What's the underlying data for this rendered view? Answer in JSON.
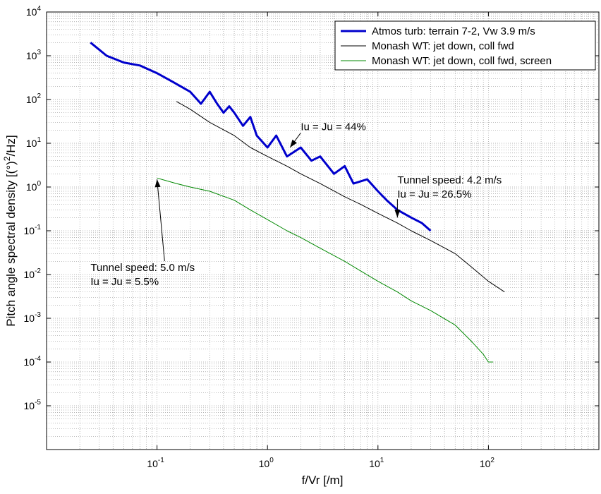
{
  "chart_data": {
    "type": "line",
    "xlabel": "f/Vr [/m]",
    "ylabel_prefix": "Pitch angle spectral density [(",
    "ylabel_degree": "°",
    "ylabel_mid": ")",
    "ylabel_sup": "2",
    "ylabel_suffix": "/Hz]",
    "xscale": "log",
    "yscale": "log",
    "xlim": [
      0.01,
      1000
    ],
    "ylim": [
      1e-06,
      10000
    ],
    "grid": true,
    "legend_position": "top-right",
    "x_ticks": [
      {
        "value": 0.1,
        "base": "10",
        "exp": "-1"
      },
      {
        "value": 1,
        "base": "10",
        "exp": "0"
      },
      {
        "value": 10,
        "base": "10",
        "exp": "1"
      },
      {
        "value": 100,
        "base": "10",
        "exp": "2"
      }
    ],
    "y_ticks": [
      {
        "value": 1e-05,
        "base": "10",
        "exp": "-5"
      },
      {
        "value": 0.0001,
        "base": "10",
        "exp": "-4"
      },
      {
        "value": 0.001,
        "base": "10",
        "exp": "-3"
      },
      {
        "value": 0.01,
        "base": "10",
        "exp": "-2"
      },
      {
        "value": 0.1,
        "base": "10",
        "exp": "-1"
      },
      {
        "value": 1,
        "base": "10",
        "exp": "0"
      },
      {
        "value": 10,
        "base": "10",
        "exp": "1"
      },
      {
        "value": 100,
        "base": "10",
        "exp": "2"
      },
      {
        "value": 1000,
        "base": "10",
        "exp": "3"
      },
      {
        "value": 10000,
        "base": "10",
        "exp": "4"
      }
    ],
    "series": [
      {
        "name": "Atmos turb: terrain 7-2, Vw 3.9 m/s",
        "color": "#0000cc",
        "x": [
          0.025,
          0.035,
          0.05,
          0.07,
          0.1,
          0.14,
          0.2,
          0.25,
          0.3,
          0.35,
          0.4,
          0.45,
          0.5,
          0.6,
          0.7,
          0.8,
          1.0,
          1.2,
          1.5,
          2.0,
          2.5,
          3.0,
          4.0,
          5.0,
          6.0,
          8.0,
          10.0,
          12.0,
          15.0,
          20.0,
          25.0,
          30.0
        ],
        "y": [
          2000,
          1000,
          700,
          600,
          400,
          250,
          150,
          80,
          150,
          80,
          50,
          70,
          50,
          25,
          40,
          15,
          8,
          15,
          5,
          8,
          4,
          5,
          2,
          3,
          1.2,
          1.5,
          0.8,
          0.5,
          0.3,
          0.2,
          0.15,
          0.1
        ]
      },
      {
        "name": "Monash WT: jet down, coll fwd",
        "color": "#000000",
        "x": [
          0.15,
          0.2,
          0.3,
          0.5,
          0.7,
          1.0,
          1.5,
          2.0,
          3.0,
          5.0,
          7.0,
          10.0,
          15.0,
          20.0,
          30.0,
          50.0,
          70.0,
          100.0,
          140.0
        ],
        "y": [
          90,
          60,
          30,
          15,
          8,
          5,
          3,
          2,
          1.2,
          0.6,
          0.4,
          0.25,
          0.15,
          0.1,
          0.06,
          0.03,
          0.015,
          0.007,
          0.004
        ]
      },
      {
        "name": "Monash WT: jet down, coll fwd, screen",
        "color": "#008800",
        "x": [
          0.1,
          0.15,
          0.2,
          0.3,
          0.5,
          0.7,
          1.0,
          1.5,
          2.0,
          3.0,
          5.0,
          7.0,
          10.0,
          15.0,
          20.0,
          30.0,
          50.0,
          70.0,
          90.0,
          100.0,
          110.0
        ],
        "y": [
          1.6,
          1.2,
          1.0,
          0.8,
          0.5,
          0.3,
          0.18,
          0.1,
          0.07,
          0.04,
          0.02,
          0.012,
          0.007,
          0.004,
          0.0025,
          0.0015,
          0.0007,
          0.0003,
          0.00015,
          0.0001,
          0.0001
        ]
      }
    ],
    "annotations": [
      {
        "lines": [
          "Iu = Ju = 44%"
        ],
        "text_at": [
          2.0,
          20
        ],
        "arrow_to": [
          1.6,
          8
        ]
      },
      {
        "lines": [
          "Tunnel speed: 4.2 m/s",
          "Iu = Ju = 26.5%"
        ],
        "text_at": [
          15,
          1.2
        ],
        "arrow_to": [
          15,
          0.2
        ]
      },
      {
        "lines": [
          "Tunnel speed: 5.0 m/s",
          "Iu = Ju = 5.5%"
        ],
        "text_at": [
          0.025,
          0.012
        ],
        "arrow_to": [
          0.1,
          1.5
        ]
      }
    ]
  }
}
